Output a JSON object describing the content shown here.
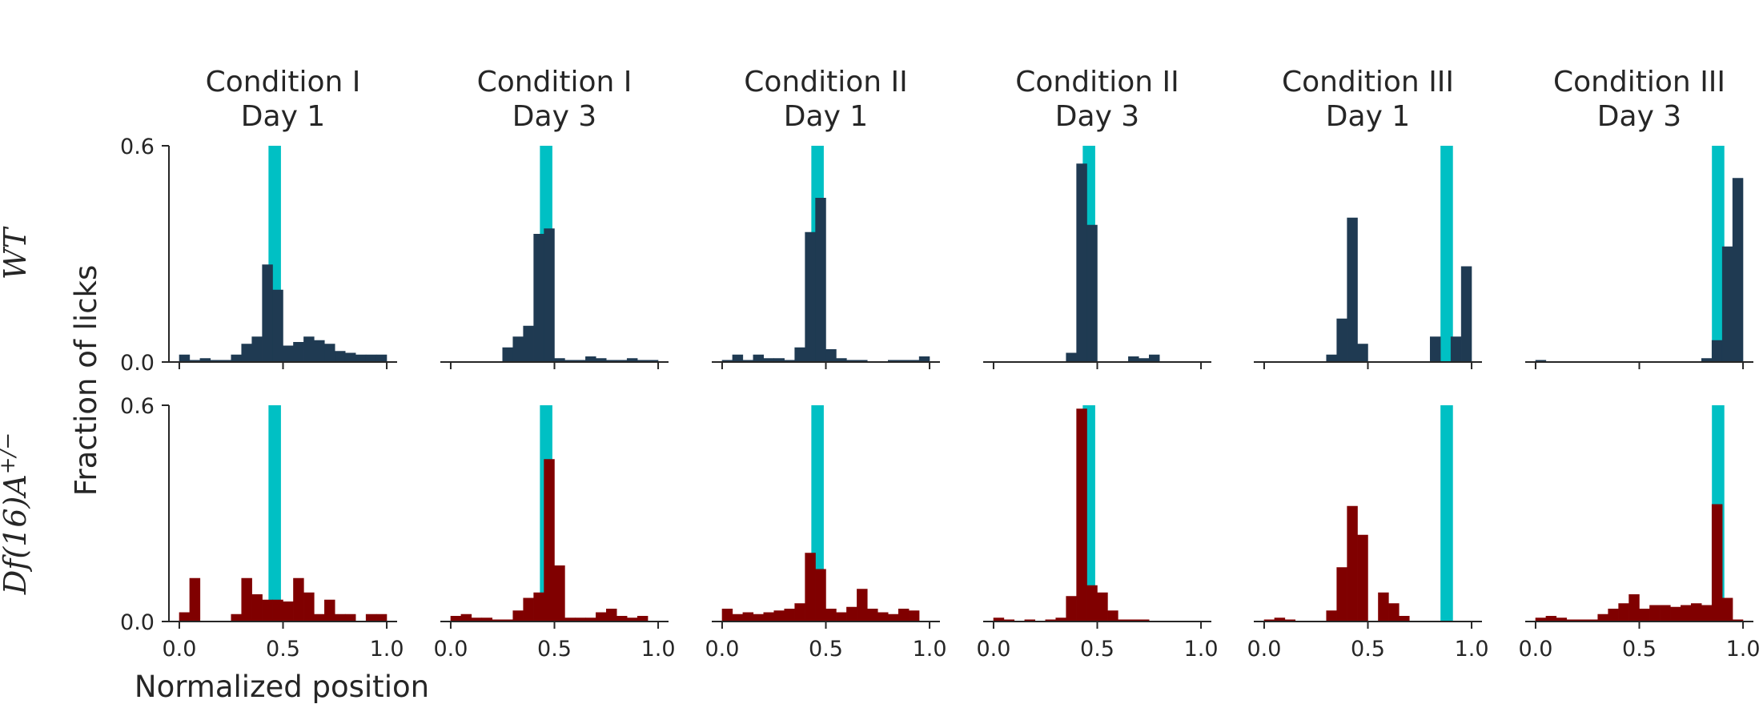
{
  "chart_data": {
    "type": "bar",
    "ylabel": "Fraction of licks",
    "xlabel": "Normalized position",
    "xlim": [
      -0.05,
      1.05
    ],
    "ylim": [
      0,
      0.6
    ],
    "xticks": [
      "0.0",
      "0.5",
      "1.0"
    ],
    "yticks": [
      "0.0",
      "0.6"
    ],
    "bin_width": 0.05,
    "bin_starts": [
      0.0,
      0.05,
      0.1,
      0.15,
      0.2,
      0.25,
      0.3,
      0.35,
      0.4,
      0.45,
      0.5,
      0.55,
      0.6,
      0.65,
      0.7,
      0.75,
      0.8,
      0.85,
      0.9,
      0.95
    ],
    "columns": [
      {
        "title_line1": "Condition I",
        "title_line2": "Day 1",
        "reward_zone": [
          0.43,
          0.49
        ]
      },
      {
        "title_line1": "Condition I",
        "title_line2": "Day 3",
        "reward_zone": [
          0.43,
          0.49
        ]
      },
      {
        "title_line1": "Condition II",
        "title_line2": "Day 1",
        "reward_zone": [
          0.43,
          0.49
        ]
      },
      {
        "title_line1": "Condition II",
        "title_line2": "Day 3",
        "reward_zone": [
          0.43,
          0.49
        ]
      },
      {
        "title_line1": "Condition III",
        "title_line2": "Day 1",
        "reward_zone": [
          0.85,
          0.91
        ]
      },
      {
        "title_line1": "Condition III",
        "title_line2": "Day 3",
        "reward_zone": [
          0.85,
          0.91
        ]
      }
    ],
    "rows": [
      {
        "label": "WT",
        "color": "#1f3a52",
        "histograms": [
          [
            0.02,
            0.005,
            0.01,
            0.005,
            0.005,
            0.02,
            0.05,
            0.07,
            0.27,
            0.2,
            0.045,
            0.055,
            0.07,
            0.06,
            0.05,
            0.03,
            0.025,
            0.02,
            0.02,
            0.02
          ],
          [
            0,
            0,
            0,
            0,
            0,
            0.04,
            0.07,
            0.1,
            0.355,
            0.37,
            0.01,
            0.005,
            0.005,
            0.015,
            0.01,
            0.005,
            0.005,
            0.01,
            0.005,
            0.005
          ],
          [
            0.005,
            0.02,
            0.005,
            0.02,
            0.01,
            0.01,
            0.005,
            0.04,
            0.36,
            0.455,
            0.035,
            0.01,
            0.005,
            0.005,
            0,
            0,
            0.005,
            0.005,
            0.005,
            0.015
          ],
          [
            0,
            0,
            0,
            0,
            0,
            0,
            0,
            0.025,
            0.55,
            0.38,
            0,
            0,
            0,
            0.015,
            0.01,
            0.02,
            0,
            0,
            0,
            0
          ],
          [
            0,
            0,
            0,
            0,
            0,
            0,
            0.02,
            0.12,
            0.4,
            0.05,
            0,
            0,
            0,
            0,
            0,
            0,
            0.07,
            0,
            0.07,
            0.265
          ],
          [
            0.005,
            0,
            0,
            0,
            0,
            0,
            0,
            0,
            0,
            0,
            0,
            0,
            0,
            0,
            0,
            0,
            0.01,
            0.06,
            0.32,
            0.51
          ]
        ]
      },
      {
        "label": "Df(16)A+/−",
        "color": "#800000",
        "histograms": [
          [
            0.025,
            0.12,
            0,
            0,
            0,
            0.02,
            0.12,
            0.075,
            0.06,
            0.06,
            0.055,
            0.12,
            0.08,
            0.02,
            0.06,
            0.02,
            0.02,
            0,
            0.02,
            0.02
          ],
          [
            0.015,
            0.02,
            0.01,
            0.01,
            0.005,
            0.005,
            0.03,
            0.065,
            0.08,
            0.45,
            0.155,
            0.01,
            0.01,
            0.01,
            0.025,
            0.035,
            0.015,
            0.01,
            0.015,
            0
          ],
          [
            0.035,
            0.02,
            0.025,
            0.02,
            0.025,
            0.03,
            0.035,
            0.05,
            0.19,
            0.145,
            0.035,
            0.025,
            0.04,
            0.09,
            0.035,
            0.025,
            0.02,
            0.035,
            0.03,
            0
          ],
          [
            0.01,
            0.005,
            0,
            0.005,
            0,
            0.005,
            0.01,
            0.07,
            0.59,
            0.1,
            0.08,
            0.03,
            0.005,
            0.005,
            0.005,
            0,
            0,
            0,
            0,
            0
          ],
          [
            0.005,
            0.01,
            0.005,
            0,
            0,
            0,
            0.03,
            0.15,
            0.32,
            0.24,
            0,
            0.08,
            0.05,
            0.015,
            0,
            0,
            0,
            0,
            0,
            0
          ],
          [
            0.01,
            0.015,
            0.01,
            0.005,
            0.005,
            0.005,
            0.02,
            0.035,
            0.05,
            0.075,
            0.035,
            0.045,
            0.045,
            0.04,
            0.045,
            0.05,
            0.045,
            0.325,
            0.065,
            0.005
          ]
        ]
      }
    ],
    "reward_zone_color": "#00c0c4"
  }
}
